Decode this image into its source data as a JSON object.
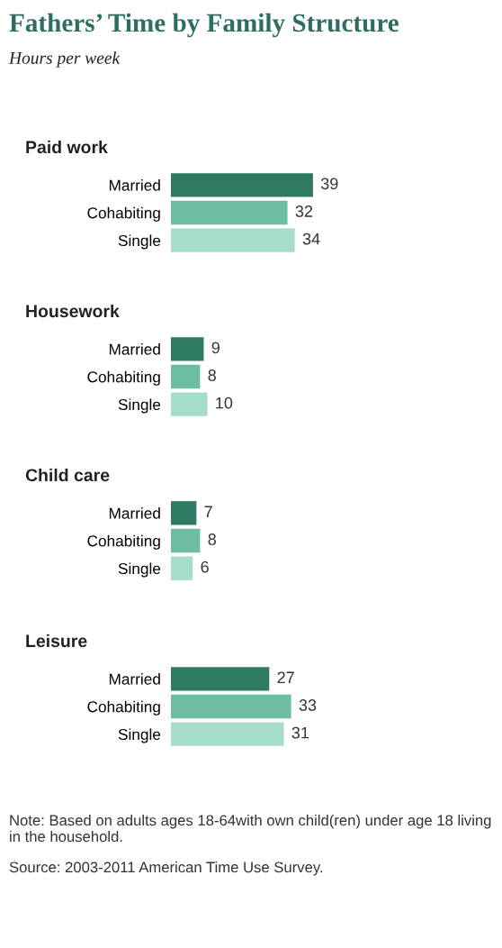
{
  "chart_data": [
    {
      "type": "other",
      "title": "Fathers’ Time by Family Structure",
      "subtitle": "Hours per week"
    },
    {
      "type": "bar",
      "orientation": "horizontal",
      "title": "Paid work",
      "categories": [
        "Married",
        "Cohabiting",
        "Single"
      ],
      "values": [
        39,
        32,
        34
      ],
      "colors": [
        "#2f7a65",
        "#6dbda6",
        "#a6dccc"
      ],
      "data_labels": true
    },
    {
      "type": "bar",
      "orientation": "horizontal",
      "title": "Housework",
      "categories": [
        "Married",
        "Cohabiting",
        "Single"
      ],
      "values": [
        9,
        8,
        10
      ],
      "colors": [
        "#2f7a65",
        "#6dbda6",
        "#a6dccc"
      ],
      "data_labels": true
    },
    {
      "type": "bar",
      "orientation": "horizontal",
      "title": "Child care",
      "categories": [
        "Married",
        "Cohabiting",
        "Single"
      ],
      "values": [
        7,
        8,
        6
      ],
      "colors": [
        "#2f7a65",
        "#6dbda6",
        "#a6dccc"
      ],
      "data_labels": true
    },
    {
      "type": "bar",
      "orientation": "horizontal",
      "title": "Leisure",
      "categories": [
        "Married",
        "Cohabiting",
        "Single"
      ],
      "values": [
        27,
        33,
        31
      ],
      "colors": [
        "#2f7a65",
        "#6dbda6",
        "#a6dccc"
      ],
      "data_labels": true
    },
    {
      "type": "other",
      "annotations": [
        "Note: Based on adults ages 18-64with own child(ren) under age 18 living in the household.",
        "Source: 2003-2011 American Time Use Survey."
      ]
    }
  ]
}
